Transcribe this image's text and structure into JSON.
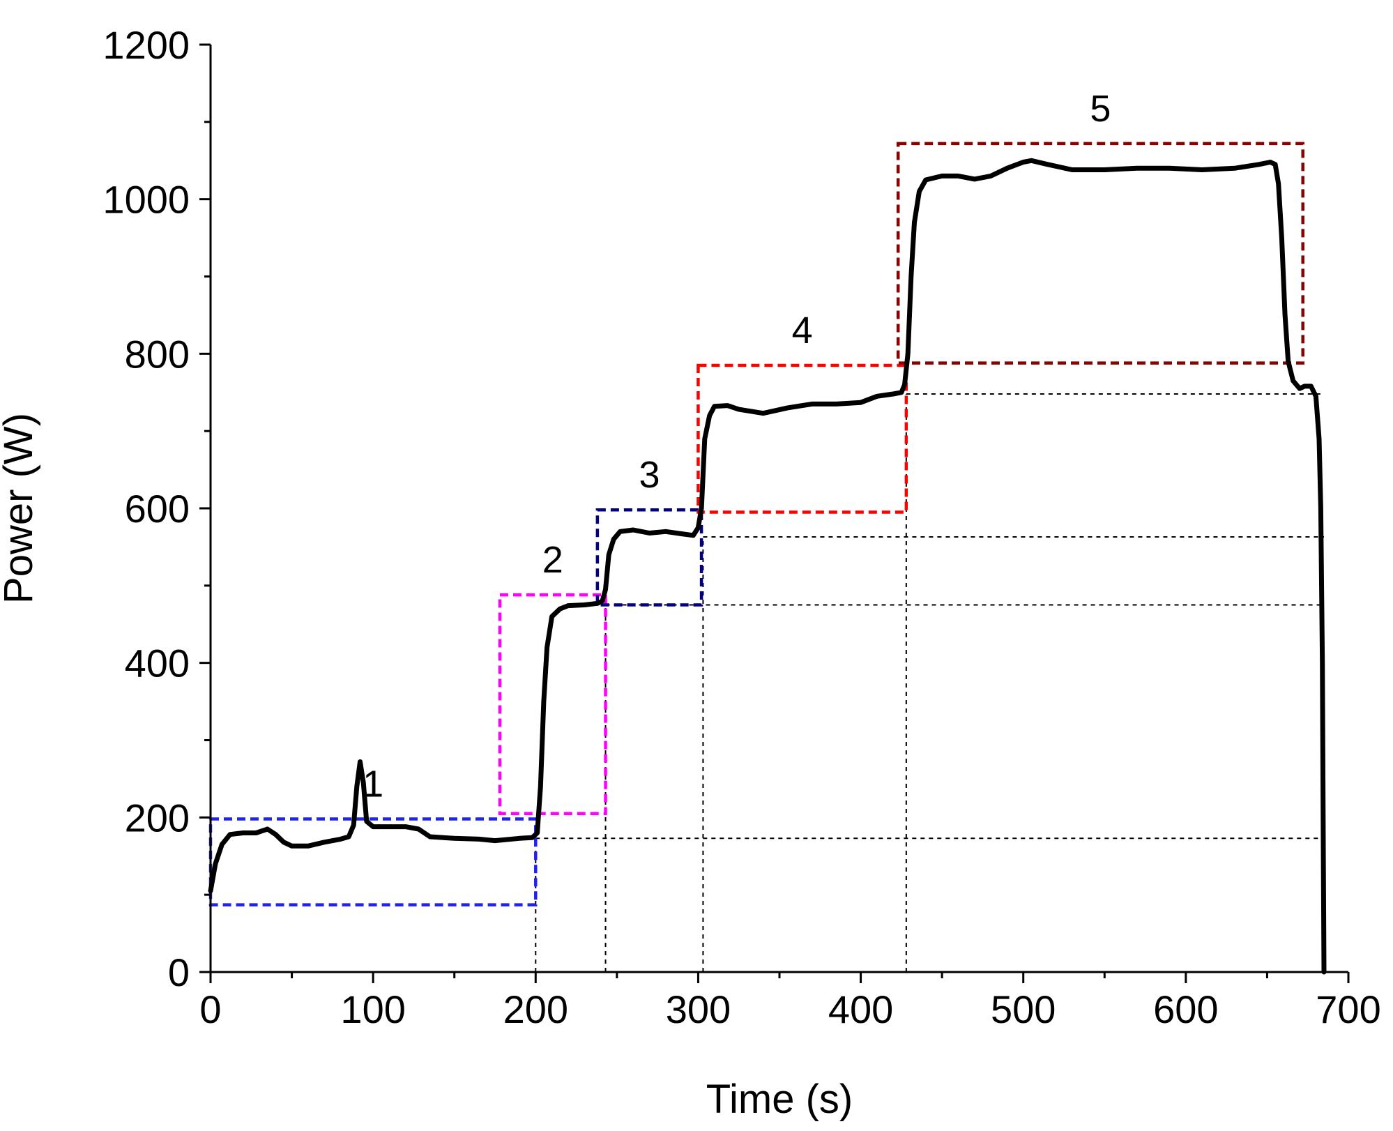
{
  "chart_data": {
    "type": "line",
    "title": "",
    "xlabel": "Time (s)",
    "ylabel": "Power (W)",
    "xlim": [
      0,
      700
    ],
    "ylim": [
      0,
      1200
    ],
    "xticks": [
      0,
      100,
      200,
      300,
      400,
      500,
      600,
      700
    ],
    "yticks": [
      0,
      200,
      400,
      600,
      800,
      1000,
      1200
    ],
    "x_minor_step": 50,
    "y_minor_step": 100,
    "grid": false,
    "series": [
      {
        "name": "Power",
        "color": "#000000",
        "points": [
          [
            0,
            105
          ],
          [
            3,
            140
          ],
          [
            7,
            165
          ],
          [
            12,
            178
          ],
          [
            20,
            180
          ],
          [
            28,
            180
          ],
          [
            35,
            185
          ],
          [
            40,
            178
          ],
          [
            45,
            168
          ],
          [
            50,
            163
          ],
          [
            60,
            163
          ],
          [
            70,
            168
          ],
          [
            80,
            172
          ],
          [
            85,
            175
          ],
          [
            88,
            190
          ],
          [
            90,
            240
          ],
          [
            92,
            272
          ],
          [
            94,
            245
          ],
          [
            96,
            195
          ],
          [
            100,
            188
          ],
          [
            110,
            188
          ],
          [
            120,
            188
          ],
          [
            128,
            185
          ],
          [
            135,
            175
          ],
          [
            150,
            173
          ],
          [
            165,
            172
          ],
          [
            175,
            170
          ],
          [
            190,
            173
          ],
          [
            198,
            174
          ],
          [
            201,
            180
          ],
          [
            203,
            240
          ],
          [
            205,
            350
          ],
          [
            207,
            420
          ],
          [
            210,
            460
          ],
          [
            215,
            470
          ],
          [
            220,
            474
          ],
          [
            230,
            475
          ],
          [
            238,
            477
          ],
          [
            241,
            480
          ],
          [
            243,
            495
          ],
          [
            245,
            540
          ],
          [
            248,
            560
          ],
          [
            252,
            570
          ],
          [
            260,
            572
          ],
          [
            270,
            568
          ],
          [
            280,
            570
          ],
          [
            290,
            567
          ],
          [
            297,
            565
          ],
          [
            300,
            575
          ],
          [
            302,
            600
          ],
          [
            304,
            690
          ],
          [
            307,
            720
          ],
          [
            310,
            732
          ],
          [
            318,
            733
          ],
          [
            325,
            728
          ],
          [
            340,
            723
          ],
          [
            355,
            730
          ],
          [
            370,
            735
          ],
          [
            385,
            735
          ],
          [
            400,
            737
          ],
          [
            410,
            745
          ],
          [
            420,
            748
          ],
          [
            425,
            750
          ],
          [
            427,
            760
          ],
          [
            429,
            800
          ],
          [
            431,
            900
          ],
          [
            433,
            970
          ],
          [
            436,
            1010
          ],
          [
            440,
            1025
          ],
          [
            450,
            1030
          ],
          [
            460,
            1030
          ],
          [
            470,
            1026
          ],
          [
            480,
            1030
          ],
          [
            490,
            1040
          ],
          [
            500,
            1048
          ],
          [
            505,
            1050
          ],
          [
            515,
            1045
          ],
          [
            530,
            1038
          ],
          [
            550,
            1038
          ],
          [
            570,
            1040
          ],
          [
            590,
            1040
          ],
          [
            610,
            1038
          ],
          [
            630,
            1040
          ],
          [
            645,
            1045
          ],
          [
            652,
            1048
          ],
          [
            655,
            1045
          ],
          [
            657,
            1020
          ],
          [
            659,
            950
          ],
          [
            661,
            850
          ],
          [
            663,
            790
          ],
          [
            666,
            765
          ],
          [
            670,
            755
          ],
          [
            673,
            758
          ],
          [
            677,
            758
          ],
          [
            680,
            745
          ],
          [
            682,
            690
          ],
          [
            683,
            600
          ],
          [
            684,
            400
          ],
          [
            684.6,
            150
          ],
          [
            685,
            0
          ]
        ]
      }
    ],
    "boxes": [
      {
        "label": "1",
        "color": "#2222ee",
        "x0": 0,
        "x1": 200,
        "y0": 87,
        "y1": 198
      },
      {
        "label": "2",
        "color": "#ff00ff",
        "x0": 178,
        "x1": 243,
        "y0": 205,
        "y1": 488
      },
      {
        "label": "3",
        "color": "#000080",
        "x0": 238,
        "x1": 302,
        "y0": 475,
        "y1": 598
      },
      {
        "label": "4",
        "color": "#ff0000",
        "x0": 300,
        "x1": 428,
        "y0": 595,
        "y1": 785
      },
      {
        "label": "5",
        "color": "#8b0000",
        "x0": 423,
        "x1": 672,
        "y0": 788,
        "y1": 1072
      }
    ],
    "reference_lines": {
      "horizontal": [
        {
          "y": 173,
          "x0": 200,
          "x1": 685
        },
        {
          "y": 475,
          "x0": 243,
          "x1": 685
        },
        {
          "y": 563,
          "x0": 303,
          "x1": 685
        },
        {
          "y": 748,
          "x0": 428,
          "x1": 685
        }
      ],
      "vertical": [
        {
          "x": 200,
          "y0": 0,
          "y1": 173
        },
        {
          "x": 243,
          "y0": 0,
          "y1": 475
        },
        {
          "x": 303,
          "y0": 0,
          "y1": 563
        },
        {
          "x": 428,
          "y0": 0,
          "y1": 748
        }
      ]
    }
  }
}
